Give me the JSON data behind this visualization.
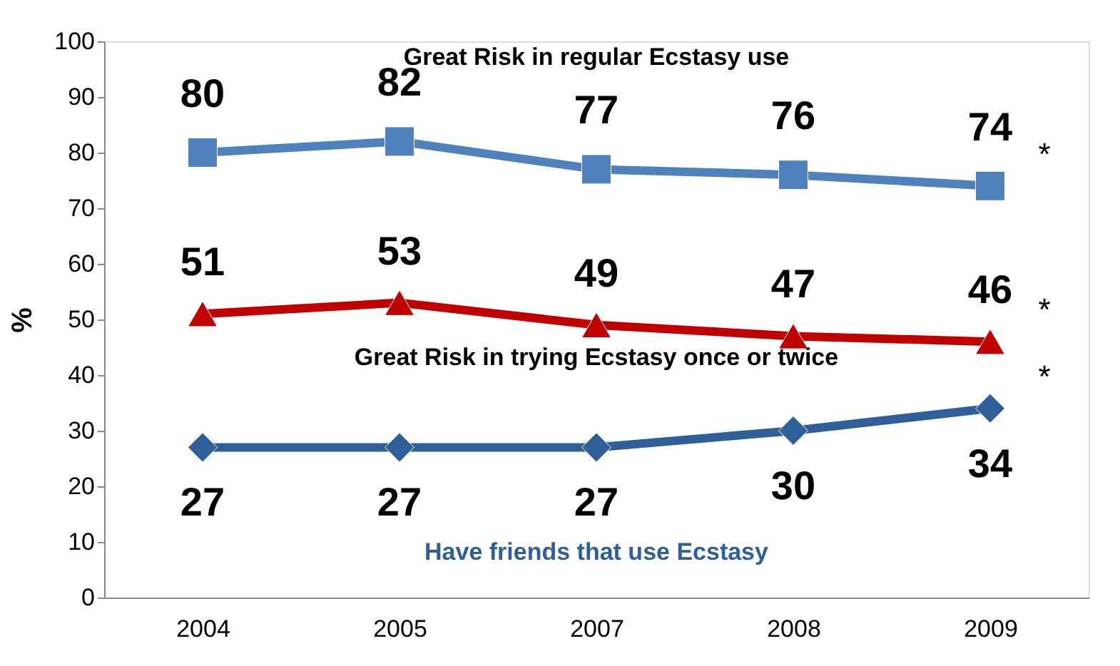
{
  "chart_data": {
    "type": "line",
    "categories": [
      "2004",
      "2005",
      "2007",
      "2008",
      "2009"
    ],
    "ylabel": "%",
    "ylim": [
      0,
      100
    ],
    "yticks": [
      0,
      10,
      20,
      30,
      40,
      50,
      60,
      70,
      80,
      90,
      100
    ],
    "grid": false,
    "data_labels": true,
    "series": [
      {
        "name": "Great Risk in regular Ecstasy use",
        "color": "#4f81bd",
        "marker": "square",
        "values": [
          80,
          82,
          77,
          76,
          74
        ]
      },
      {
        "name": "Great Risk in trying Ecstasy once or twice",
        "color": "#c00000",
        "marker": "triangle",
        "values": [
          51,
          53,
          49,
          47,
          46
        ]
      },
      {
        "name": "Have friends that use Ecstasy",
        "color": "#2f5f98",
        "marker": "diamond",
        "values": [
          27,
          27,
          27,
          30,
          34
        ]
      }
    ],
    "annotations": [
      {
        "text": "*",
        "x": "2009",
        "y": 74
      },
      {
        "text": "*",
        "x": "2009",
        "y": 46
      },
      {
        "text": "*",
        "x": "2009",
        "y": 34
      }
    ]
  }
}
